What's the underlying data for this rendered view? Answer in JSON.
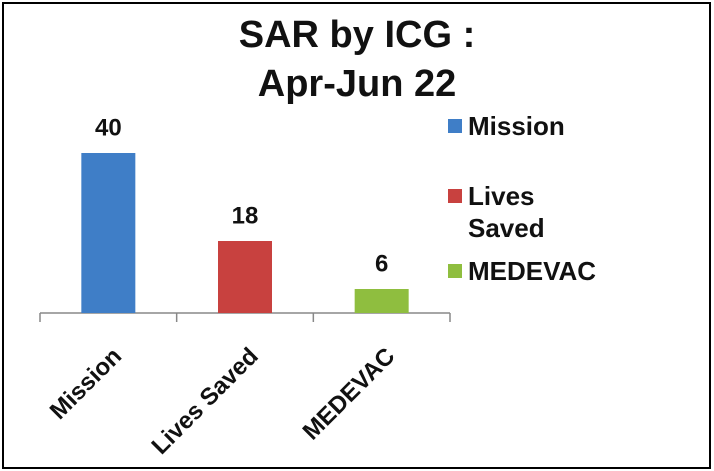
{
  "chart_data": {
    "type": "bar",
    "title": [
      "SAR by ICG :",
      "Apr-Jun 22"
    ],
    "categories": [
      "Mission",
      "Lives Saved",
      "MEDEVAC"
    ],
    "values": [
      40,
      18,
      6
    ],
    "colors": [
      "#3f7ec7",
      "#c8413f",
      "#8fbe3f"
    ],
    "legend": "right"
  }
}
